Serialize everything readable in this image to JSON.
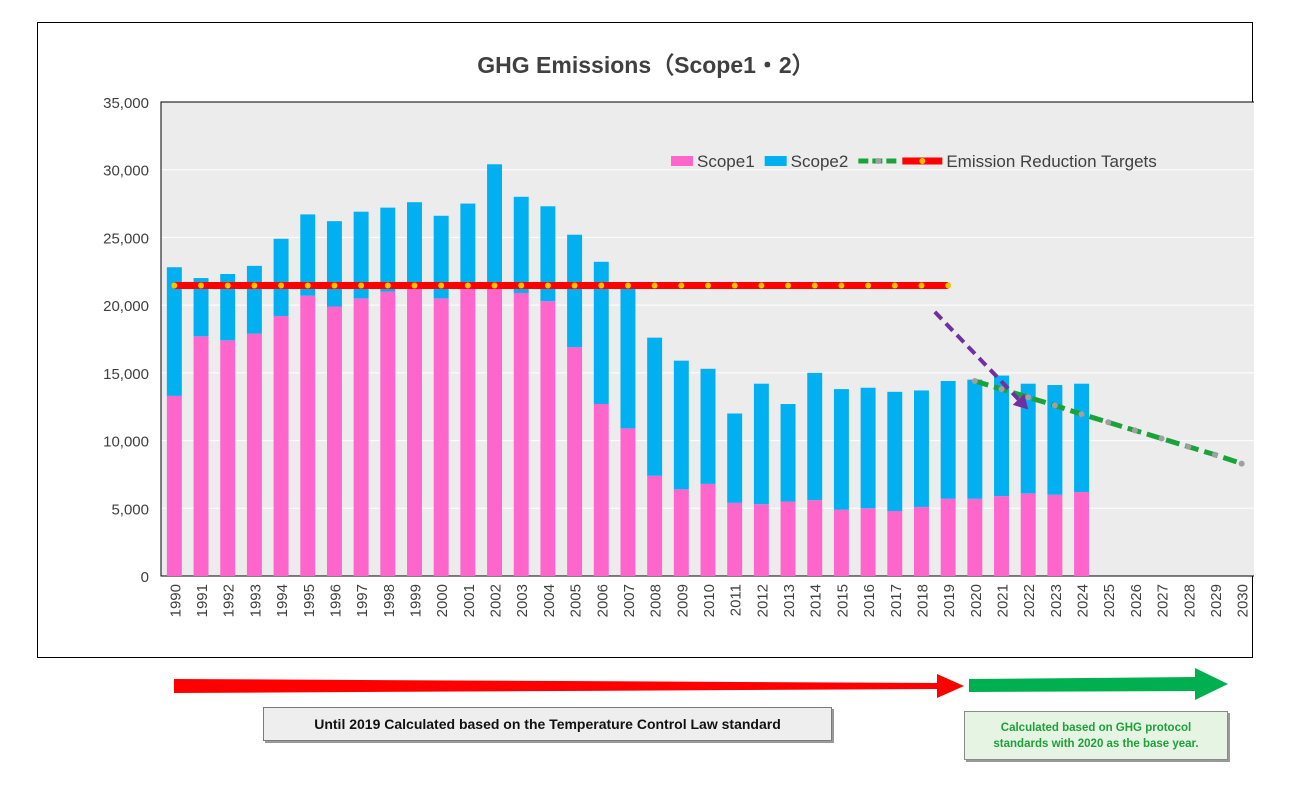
{
  "chart_data": {
    "type": "bar",
    "title": "GHG Emissions（Scope1・2）",
    "xlabel": "",
    "ylabel": "",
    "ylim": [
      0,
      35000
    ],
    "y_ticks": [
      "0",
      "5,000",
      "10,000",
      "15,000",
      "20,000",
      "25,000",
      "30,000",
      "35,000"
    ],
    "y_tick_values": [
      0,
      5000,
      10000,
      15000,
      20000,
      25000,
      30000,
      35000
    ],
    "categories": [
      "1990",
      "1991",
      "1992",
      "1993",
      "1994",
      "1995",
      "1996",
      "1997",
      "1998",
      "1999",
      "2000",
      "2001",
      "2002",
      "2003",
      "2004",
      "2005",
      "2006",
      "2007",
      "2008",
      "2009",
      "2010",
      "2011",
      "2012",
      "2013",
      "2014",
      "2015",
      "2016",
      "2017",
      "2018",
      "2019",
      "2020",
      "2021",
      "2022",
      "2023",
      "2024",
      "2025",
      "2026",
      "2027",
      "2028",
      "2029",
      "2030"
    ],
    "stacked": true,
    "grid": true,
    "legend_position": "top-right",
    "series": [
      {
        "name": "Scope1",
        "kind": "bar",
        "color": "#ff66cc",
        "values": [
          13300,
          17700,
          17400,
          17900,
          19200,
          20700,
          19900,
          20500,
          21000,
          21200,
          20500,
          21200,
          21400,
          20900,
          20300,
          16900,
          12700,
          10900,
          7400,
          6400,
          6800,
          5400,
          5300,
          5500,
          5600,
          4900,
          5000,
          4800,
          5100,
          5700,
          5700,
          5900,
          6100,
          6000,
          6200,
          null,
          null,
          null,
          null,
          null,
          null
        ]
      },
      {
        "name": "Scope2",
        "kind": "bar",
        "color": "#00b0f0",
        "values": [
          9500,
          4300,
          4900,
          5000,
          5700,
          6000,
          6300,
          6400,
          6200,
          6400,
          6100,
          6300,
          9000,
          7100,
          7000,
          8300,
          10500,
          10300,
          10200,
          9500,
          8500,
          6600,
          8900,
          7200,
          9400,
          8900,
          8900,
          8800,
          8600,
          8700,
          8800,
          8900,
          8100,
          8100,
          8000,
          null,
          null,
          null,
          null,
          null,
          null
        ]
      },
      {
        "name": "",
        "kind": "line",
        "color": "#1aa33a",
        "marker_color": "#a0a0a0",
        "dashed": true,
        "x": [
          "2020",
          "2021",
          "2022",
          "2023",
          "2024",
          "2025",
          "2026",
          "2027",
          "2028",
          "2029",
          "2030"
        ],
        "values": [
          14400,
          13800,
          13200,
          12600,
          11950,
          11350,
          10750,
          10150,
          9550,
          8950,
          8300
        ]
      },
      {
        "name": "Emission Reduction Targets",
        "kind": "line",
        "color": "#ff0000",
        "marker_color": "#ffc000",
        "x": [
          "1990",
          "1991",
          "1992",
          "1993",
          "1994",
          "1995",
          "1996",
          "1997",
          "1998",
          "1999",
          "2000",
          "2001",
          "2002",
          "2003",
          "2004",
          "2005",
          "2006",
          "2007",
          "2008",
          "2009",
          "2010",
          "2011",
          "2012",
          "2013",
          "2014",
          "2015",
          "2016",
          "2017",
          "2018",
          "2019"
        ],
        "values": [
          21450,
          21450,
          21450,
          21450,
          21450,
          21450,
          21450,
          21450,
          21450,
          21450,
          21450,
          21450,
          21450,
          21450,
          21450,
          21450,
          21450,
          21450,
          21450,
          21450,
          21450,
          21450,
          21450,
          21450,
          21450,
          21450,
          21450,
          21450,
          21450,
          21450
        ]
      }
    ],
    "annotation_arrow": {
      "color": "#7030a0",
      "from_year": "2020.2",
      "from_value": 19500,
      "to_year": "2022",
      "to_value": 12300
    }
  },
  "notes": {
    "left": "Until 2019 Calculated based on the Temperature Control Law standard",
    "right_line1": "Calculated based on GHG protocol",
    "right_line2": "standards with 2020 as the base year."
  },
  "colors": {
    "plot_background": "#ececec",
    "grid": "#ffffff",
    "red_arrow": "#ff0000",
    "green_arrow": "#00b050"
  }
}
